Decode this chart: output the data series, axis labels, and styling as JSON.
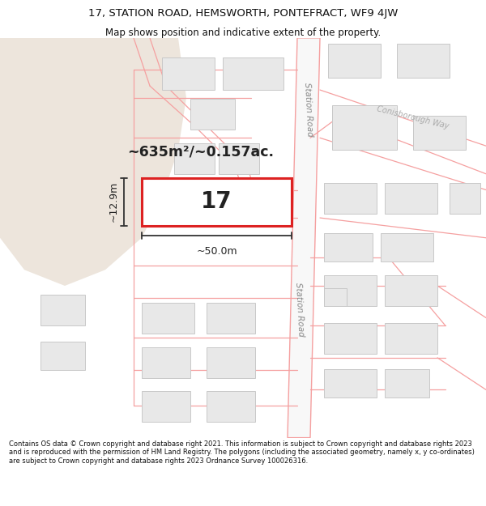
{
  "title_line1": "17, STATION ROAD, HEMSWORTH, PONTEFRACT, WF9 4JW",
  "title_line2": "Map shows position and indicative extent of the property.",
  "footer_text": "Contains OS data © Crown copyright and database right 2021. This information is subject to Crown copyright and database rights 2023 and is reproduced with the permission of HM Land Registry. The polygons (including the associated geometry, namely x, y co-ordinates) are subject to Crown copyright and database rights 2023 Ordnance Survey 100026316.",
  "bg_map_color": "#ffffff",
  "road_color": "#f5a0a0",
  "building_fill": "#e8e8e8",
  "building_outline": "#c8c8c8",
  "highlight_color": "#dd2222",
  "plot_number": "17",
  "area_text": "~635m²/~0.157ac.",
  "dim_width": "~50.0m",
  "dim_height": "~12.9m",
  "land_fill": "#ede5dc",
  "station_road_label": "Station Road",
  "conisborough_label": "Conisborough Way"
}
